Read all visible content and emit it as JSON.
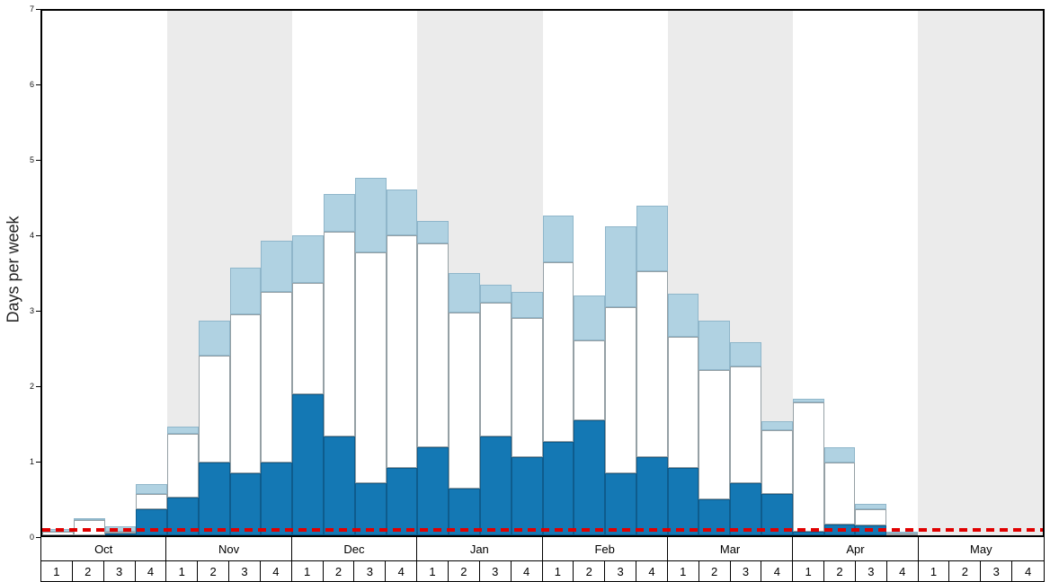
{
  "chart_data": {
    "type": "bar",
    "stacked": true,
    "title": "",
    "xlabel": "",
    "ylabel": "Days per week",
    "ylim": [
      0,
      7
    ],
    "yticks": [
      0,
      1,
      2,
      3,
      4,
      5,
      6,
      7
    ],
    "months": [
      "Oct",
      "Nov",
      "Dec",
      "Jan",
      "Feb",
      "Mar",
      "Apr",
      "May"
    ],
    "weeks_per_month": [
      "1",
      "2",
      "3",
      "4"
    ],
    "shaded_months": [
      "Nov",
      "Jan",
      "Mar",
      "May"
    ],
    "band_color": "#ebebeb",
    "series": [
      {
        "name": "dark-blue",
        "color": "#1478b4",
        "border": "#0e5c8d",
        "values": [
          0,
          0,
          0.02,
          0.35,
          0.5,
          0.97,
          0.83,
          0.97,
          1.88,
          1.32,
          0.7,
          0.9,
          1.18,
          0.62,
          1.32,
          1.04,
          1.25,
          1.53,
          0.83,
          1.04,
          0.9,
          0.48,
          0.7,
          0.55,
          0.05,
          0.15,
          0.13,
          0,
          0,
          0,
          0,
          0
        ]
      },
      {
        "name": "white",
        "color": "#ffffff",
        "border": "#95a0a5",
        "values": [
          0.05,
          0.2,
          0.03,
          0.2,
          0.85,
          1.43,
          2.12,
          2.28,
          1.49,
          2.73,
          3.08,
          3.1,
          2.72,
          2.35,
          1.78,
          1.86,
          2.4,
          1.07,
          2.22,
          2.48,
          1.75,
          1.72,
          1.55,
          0.85,
          1.73,
          0.82,
          0.22,
          0.02,
          0,
          0,
          0,
          0
        ]
      },
      {
        "name": "light-blue",
        "color": "#b0d2e2",
        "border": "#8fb6ca",
        "values": [
          0.03,
          0.02,
          0.07,
          0.13,
          0.1,
          0.47,
          0.62,
          0.68,
          0.63,
          0.5,
          0.99,
          0.62,
          0.3,
          0.53,
          0.25,
          0.35,
          0.62,
          0.6,
          1.07,
          0.88,
          0.57,
          0.67,
          0.33,
          0.12,
          0.04,
          0.21,
          0.07,
          0.01,
          0,
          0,
          0,
          0
        ]
      }
    ],
    "reference_line": {
      "y": 0.06,
      "color": "#e10000",
      "style": "dashed"
    }
  }
}
